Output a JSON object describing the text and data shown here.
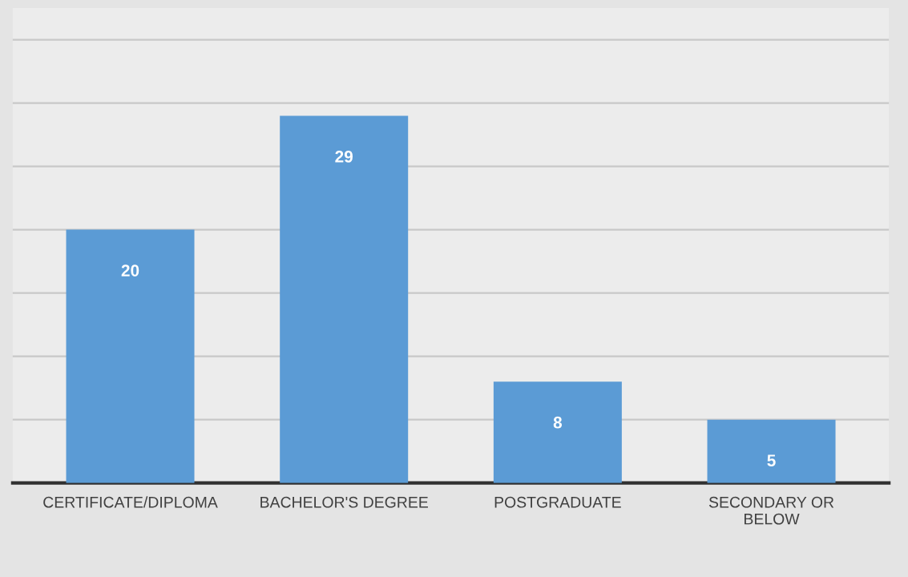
{
  "chart_data": {
    "type": "bar",
    "categories": [
      "CERTIFICATE/DIPLOMA",
      "BACHELOR'S DEGREE",
      "POSTGRADUATE",
      "SECONDARY OR\nBELOW"
    ],
    "values": [
      20,
      29,
      8,
      5
    ],
    "color": "#5b9bd5",
    "data_labels": true,
    "ylim": [
      0,
      37.5
    ],
    "yticks": [
      {
        "value": 0,
        "label": null
      },
      {
        "value": 5,
        "label": null
      },
      {
        "value": 10,
        "label": null
      },
      {
        "value": 15,
        "label": null
      },
      {
        "value": 20,
        "label": null
      },
      {
        "value": 25,
        "label": null
      },
      {
        "value": 30,
        "label": null
      },
      {
        "value": 35,
        "label": null
      }
    ],
    "tick_labels": "x",
    "grid": "y"
  }
}
